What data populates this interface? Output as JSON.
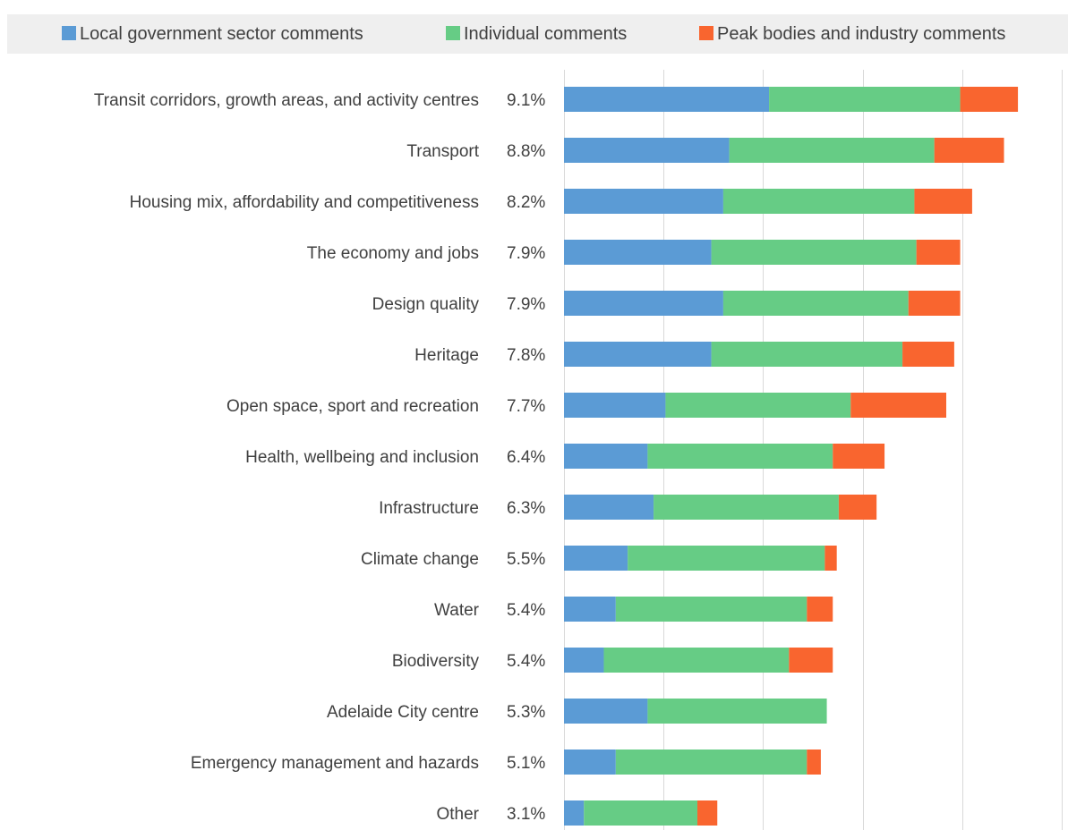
{
  "chart_data": {
    "type": "bar",
    "orientation": "horizontal",
    "stacked": true,
    "legend_position": "top",
    "grid": true,
    "categories": [
      "Transit corridors, growth areas, and activity centres",
      "Transport",
      "Housing mix, affordability and competitiveness",
      "The economy and jobs",
      "Design quality",
      "Heritage",
      "Open space, sport and recreation",
      "Health, wellbeing and inclusion",
      "Infrastructure",
      "Climate change",
      "Water",
      "Biodiversity",
      "Adelaide City centre",
      "Emergency management and hazards",
      "Other"
    ],
    "percent_labels": [
      "9.1%",
      "8.8%",
      "8.2%",
      "7.9%",
      "7.9%",
      "7.8%",
      "7.7%",
      "6.4%",
      "6.3%",
      "5.5%",
      "5.4%",
      "5.4%",
      "5.3%",
      "5.1%",
      "3.1%"
    ],
    "series": [
      {
        "name": "Local government sector comments",
        "color": "#5b9bd5",
        "values": [
          10.3,
          8.3,
          8.0,
          7.4,
          8.0,
          7.4,
          5.1,
          4.2,
          4.5,
          3.2,
          2.6,
          2.0,
          4.2,
          2.6,
          1.0
        ]
      },
      {
        "name": "Individual comments",
        "color": "#66cc85",
        "values": [
          9.6,
          10.3,
          9.6,
          10.3,
          9.3,
          9.6,
          9.3,
          9.3,
          9.3,
          9.9,
          9.6,
          9.3,
          9.0,
          9.6,
          5.7
        ]
      },
      {
        "name": "Peak bodies and industry comments",
        "color": "#f9652f",
        "values": [
          2.9,
          3.5,
          2.9,
          2.2,
          2.6,
          2.6,
          4.8,
          2.6,
          1.9,
          0.6,
          1.3,
          2.2,
          0.0,
          0.7,
          1.0
        ]
      }
    ],
    "xlim": [
      0,
      25
    ],
    "title": "",
    "xlabel": "",
    "ylabel": ""
  }
}
